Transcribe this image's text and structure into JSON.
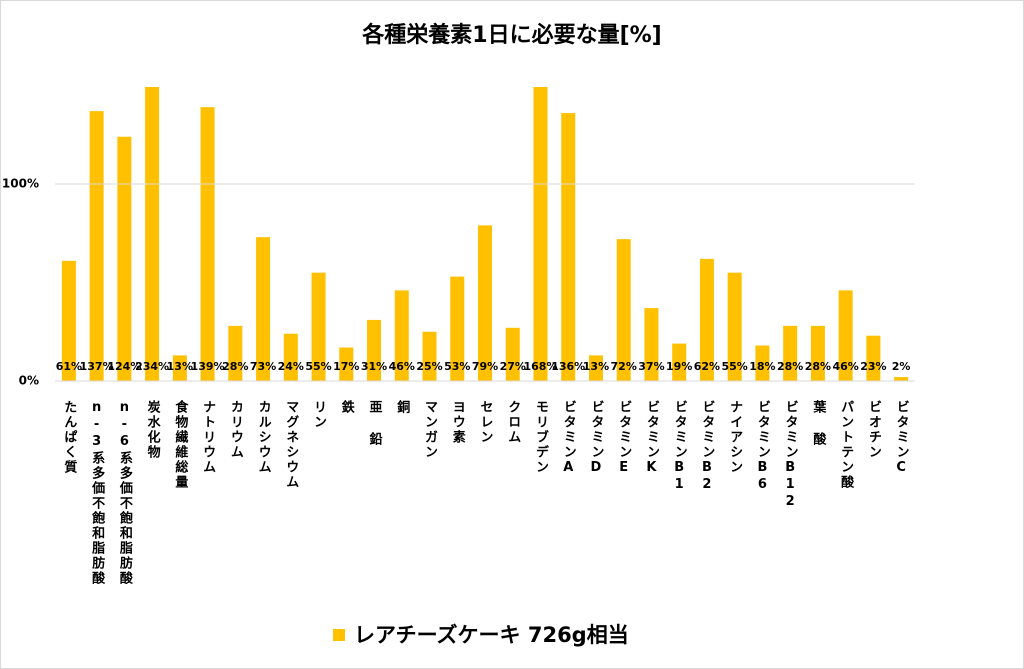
{
  "chart_data": {
    "type": "bar",
    "title": "各種栄養素1日に必要な量[%]",
    "categories": [
      "たんぱく質",
      "n-3系多価不飽和脂肪酸",
      "n-6系多価不飽和脂肪酸",
      "炭水化物",
      "食物繊維総量",
      "ナトリウム",
      "カリウム",
      "カルシウム",
      "マグネシウム",
      "リン",
      "鉄",
      "亜 鉛",
      "銅",
      "マンガン",
      "ヨウ素",
      "セレン",
      "クロム",
      "モリブデン",
      "ビタミンA",
      "ビタミンD",
      "ビタミンE",
      "ビタミンK",
      "ビタミンB1",
      "ビタミンB2",
      "ナイアシン",
      "ビタミンB6",
      "ビタミンB12",
      "葉 酸",
      "パントテン酸",
      "ビオチン",
      "ビタミンC"
    ],
    "series": [
      {
        "name": "レアチーズケーキ 726g相当",
        "color": "#ffc000",
        "values": [
          61,
          137,
          124,
          234,
          13,
          139,
          28,
          73,
          24,
          55,
          17,
          31,
          46,
          25,
          53,
          79,
          27,
          168,
          136,
          13,
          72,
          37,
          19,
          62,
          55,
          18,
          28,
          28,
          46,
          23,
          2
        ],
        "value_labels": [
          "61%",
          "137%",
          "124%",
          "234%",
          "13%",
          "139%",
          "28%",
          "73%",
          "24%",
          "55%",
          "17%",
          "31%",
          "46%",
          "25%",
          "53%",
          "79%",
          "27%",
          "168%",
          "136%",
          "13%",
          "72%",
          "37%",
          "19%",
          "62%",
          "55%",
          "18%",
          "28%",
          "28%",
          "46%",
          "23%",
          "2%"
        ]
      }
    ],
    "ylim": [
      0,
      150
    ],
    "yticks": [
      {
        "value": 0,
        "label": "0%"
      },
      {
        "value": 100,
        "label": "100%"
      }
    ],
    "grid": true,
    "legend": "bottom"
  }
}
